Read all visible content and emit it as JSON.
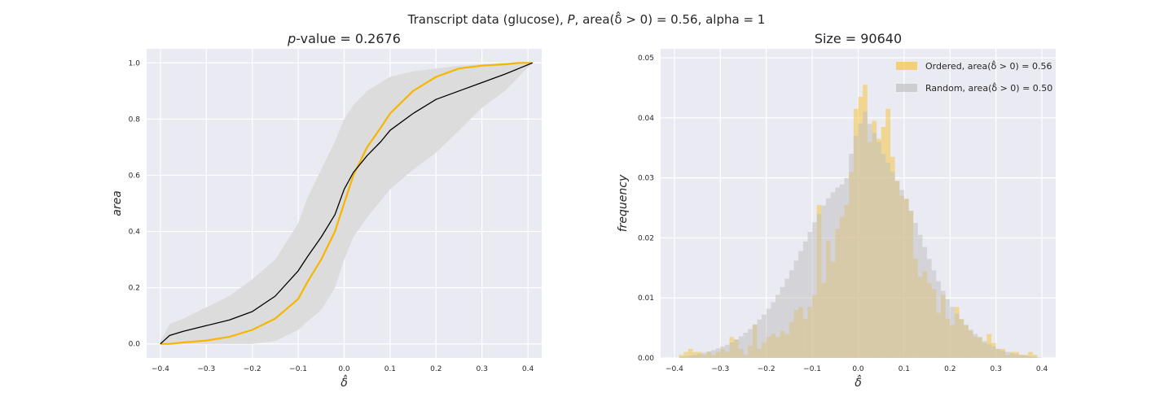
{
  "figure": {
    "suptitle": "Transcript data (glucose), P, area(δ̂ > 0) = 0.56, alpha = 1"
  },
  "chart_data": [
    {
      "type": "line",
      "title": "p-value = 0.2676",
      "xlabel": "δ̂",
      "ylabel": "area",
      "xlim": [
        -0.43,
        0.43
      ],
      "ylim": [
        -0.05,
        1.05
      ],
      "xticks": [
        -0.4,
        -0.3,
        -0.2,
        -0.1,
        0.0,
        0.1,
        0.2,
        0.3,
        0.4
      ],
      "xticklabels": [
        "−0.4",
        "−0.3",
        "−0.2",
        "−0.1",
        "0.0",
        "0.1",
        "0.2",
        "0.3",
        "0.4"
      ],
      "yticks": [
        0.0,
        0.2,
        0.4,
        0.6,
        0.8,
        1.0
      ],
      "yticklabels": [
        "0.0",
        "0.2",
        "0.4",
        "0.6",
        "0.8",
        "1.0"
      ],
      "grid": true,
      "background": "#eaeaf2",
      "band": {
        "color": "#dcdcdc",
        "x": [
          -0.4,
          -0.38,
          -0.35,
          -0.3,
          -0.25,
          -0.2,
          -0.15,
          -0.1,
          -0.08,
          -0.05,
          -0.02,
          0.0,
          0.02,
          0.05,
          0.1,
          0.15,
          0.2,
          0.25,
          0.3,
          0.35,
          0.38,
          0.41
        ],
        "lower": [
          0.0,
          0.0,
          0.0,
          0.0,
          0.0,
          0.0,
          0.01,
          0.05,
          0.08,
          0.12,
          0.2,
          0.3,
          0.38,
          0.45,
          0.55,
          0.62,
          0.68,
          0.76,
          0.84,
          0.9,
          0.95,
          1.0
        ],
        "upper": [
          0.01,
          0.07,
          0.09,
          0.13,
          0.17,
          0.23,
          0.3,
          0.43,
          0.52,
          0.62,
          0.72,
          0.8,
          0.85,
          0.9,
          0.95,
          0.97,
          0.98,
          0.99,
          0.995,
          1.0,
          1.0,
          1.0
        ]
      },
      "series": [
        {
          "color": "#f8b500",
          "width": 2.2,
          "x": [
            -0.4,
            -0.38,
            -0.35,
            -0.3,
            -0.25,
            -0.2,
            -0.15,
            -0.1,
            -0.08,
            -0.05,
            -0.02,
            0.0,
            0.02,
            0.05,
            0.08,
            0.1,
            0.15,
            0.2,
            0.25,
            0.3,
            0.35,
            0.38,
            0.41
          ],
          "y": [
            0.0,
            0.0,
            0.005,
            0.012,
            0.025,
            0.05,
            0.09,
            0.16,
            0.22,
            0.3,
            0.4,
            0.5,
            0.6,
            0.7,
            0.77,
            0.82,
            0.9,
            0.95,
            0.98,
            0.99,
            0.995,
            1.0,
            1.0
          ]
        },
        {
          "color": "#000000",
          "width": 1.3,
          "x": [
            -0.4,
            -0.38,
            -0.35,
            -0.3,
            -0.25,
            -0.2,
            -0.15,
            -0.1,
            -0.08,
            -0.05,
            -0.02,
            0.0,
            0.02,
            0.05,
            0.08,
            0.1,
            0.15,
            0.2,
            0.25,
            0.3,
            0.35,
            0.38,
            0.41
          ],
          "y": [
            0.0,
            0.03,
            0.045,
            0.065,
            0.085,
            0.115,
            0.17,
            0.26,
            0.31,
            0.38,
            0.46,
            0.55,
            0.61,
            0.67,
            0.72,
            0.76,
            0.82,
            0.87,
            0.9,
            0.93,
            0.96,
            0.98,
            1.0
          ]
        }
      ]
    },
    {
      "type": "histogram",
      "title": "Size = 90640",
      "xlabel": "δ̂",
      "ylabel": "frequency",
      "xlim": [
        -0.43,
        0.43
      ],
      "ylim": [
        0.0,
        0.0515
      ],
      "xticks": [
        -0.4,
        -0.3,
        -0.2,
        -0.1,
        0.0,
        0.1,
        0.2,
        0.3,
        0.4
      ],
      "xticklabels": [
        "−0.4",
        "−0.3",
        "−0.2",
        "−0.1",
        "0.0",
        "0.1",
        "0.2",
        "0.3",
        "0.4"
      ],
      "yticks": [
        0.0,
        0.01,
        0.02,
        0.03,
        0.04,
        0.05
      ],
      "yticklabels": [
        "0.00",
        "0.01",
        "0.02",
        "0.03",
        "0.04",
        "0.05"
      ],
      "grid": true,
      "background": "#eaeaf2",
      "legend_position": "top-right",
      "series": [
        {
          "name": "Ordered, area(δ̂ > 0) = 0.56",
          "color": "#f6c443",
          "opacity": 0.55,
          "bin_start": -0.41,
          "bin_width": 0.01,
          "values": [
            0.0,
            0.0,
            0.0005,
            0.001,
            0.0015,
            0.001,
            0.001,
            0.0005,
            0.001,
            0.0005,
            0.001,
            0.0015,
            0.001,
            0.0035,
            0.003,
            0.0015,
            0.0005,
            0.002,
            0.0055,
            0.0015,
            0.0025,
            0.0035,
            0.004,
            0.0035,
            0.0045,
            0.004,
            0.006,
            0.008,
            0.0085,
            0.0065,
            0.0085,
            0.0105,
            0.0255,
            0.0125,
            0.0195,
            0.016,
            0.0215,
            0.0235,
            0.0255,
            0.031,
            0.0415,
            0.0435,
            0.0455,
            0.036,
            0.0395,
            0.0365,
            0.0385,
            0.0415,
            0.0335,
            0.0295,
            0.027,
            0.0265,
            0.0245,
            0.0165,
            0.0135,
            0.0145,
            0.0125,
            0.0115,
            0.0075,
            0.0105,
            0.0065,
            0.0055,
            0.0085,
            0.0065,
            0.0055,
            0.0045,
            0.0035,
            0.0035,
            0.0025,
            0.004,
            0.0025,
            0.0015,
            0.0015,
            0.0005,
            0.001,
            0.001,
            0.0005,
            0.0005,
            0.001,
            0.0005,
            0.0,
            0.0
          ]
        },
        {
          "name": "Random, area(δ̂ > 0) = 0.50",
          "color": "#bdbdbd",
          "opacity": 0.5,
          "bin_start": -0.41,
          "bin_width": 0.01,
          "values": [
            0.0,
            0.0,
            0.0002,
            0.0003,
            0.0004,
            0.0005,
            0.0007,
            0.0009,
            0.0011,
            0.0013,
            0.0016,
            0.0019,
            0.0022,
            0.0026,
            0.0031,
            0.0036,
            0.0042,
            0.0048,
            0.0056,
            0.0064,
            0.0072,
            0.0082,
            0.0093,
            0.0105,
            0.0118,
            0.0132,
            0.0146,
            0.0162,
            0.0178,
            0.0194,
            0.021,
            0.0226,
            0.024,
            0.0254,
            0.0266,
            0.0276,
            0.0284,
            0.0289,
            0.03,
            0.034,
            0.037,
            0.039,
            0.041,
            0.039,
            0.0375,
            0.036,
            0.034,
            0.0325,
            0.031,
            0.0295,
            0.028,
            0.0265,
            0.0245,
            0.0225,
            0.0205,
            0.0185,
            0.0165,
            0.0146,
            0.0128,
            0.0112,
            0.0098,
            0.0085,
            0.0074,
            0.0064,
            0.0055,
            0.0047,
            0.004,
            0.0034,
            0.0028,
            0.0023,
            0.0019,
            0.0015,
            0.0012,
            0.001,
            0.0008,
            0.0006,
            0.0005,
            0.0004,
            0.0003,
            0.0002,
            0.0001,
            0.0
          ]
        }
      ]
    }
  ]
}
